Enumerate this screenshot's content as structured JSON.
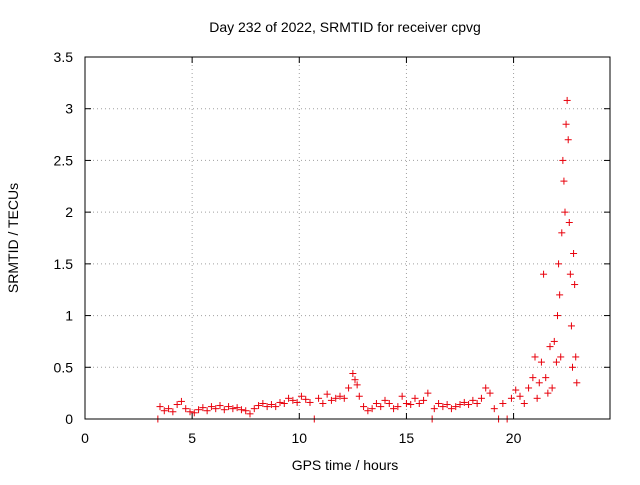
{
  "chart_data": {
    "type": "scatter",
    "title": "Day 232 of 2022, SRMTID for receiver cpvg",
    "xlabel": "GPS time / hours",
    "ylabel": "SRMTID / TECUs",
    "xlim": [
      0,
      24.5
    ],
    "ylim": [
      0,
      3.5
    ],
    "grid": true,
    "marker": "+",
    "series_color": "#e8000b",
    "x_ticks": [
      0,
      5,
      10,
      15,
      20
    ],
    "y_ticks": [
      0,
      0.5,
      1,
      1.5,
      2,
      2.5,
      3,
      3.5
    ],
    "x_tick_labels": [
      "0",
      "5",
      "10",
      "15",
      "20"
    ],
    "y_tick_labels": [
      "0",
      "0.5",
      "1",
      "1.5",
      "2",
      "2.5",
      "3",
      "3.5"
    ],
    "series": [
      {
        "name": "SRMTID",
        "points": [
          [
            3.4,
            0.0
          ],
          [
            3.5,
            0.12
          ],
          [
            3.7,
            0.08
          ],
          [
            3.9,
            0.1
          ],
          [
            4.1,
            0.07
          ],
          [
            4.3,
            0.14
          ],
          [
            4.5,
            0.17
          ],
          [
            4.7,
            0.1
          ],
          [
            4.9,
            0.07
          ],
          [
            5.1,
            0.06
          ],
          [
            5.3,
            0.09
          ],
          [
            5.5,
            0.11
          ],
          [
            5.7,
            0.08
          ],
          [
            5.9,
            0.12
          ],
          [
            6.1,
            0.1
          ],
          [
            6.3,
            0.13
          ],
          [
            6.5,
            0.09
          ],
          [
            6.7,
            0.12
          ],
          [
            6.9,
            0.1
          ],
          [
            7.1,
            0.11
          ],
          [
            7.3,
            0.09
          ],
          [
            7.5,
            0.08
          ],
          [
            7.7,
            0.05
          ],
          [
            7.9,
            0.1
          ],
          [
            8.1,
            0.13
          ],
          [
            8.3,
            0.15
          ],
          [
            8.5,
            0.12
          ],
          [
            8.7,
            0.14
          ],
          [
            8.9,
            0.12
          ],
          [
            9.1,
            0.16
          ],
          [
            9.3,
            0.15
          ],
          [
            9.5,
            0.2
          ],
          [
            9.7,
            0.18
          ],
          [
            9.9,
            0.16
          ],
          [
            10.1,
            0.22
          ],
          [
            10.3,
            0.19
          ],
          [
            10.5,
            0.16
          ],
          [
            10.7,
            0.0
          ],
          [
            10.9,
            0.2
          ],
          [
            11.1,
            0.15
          ],
          [
            11.3,
            0.24
          ],
          [
            11.5,
            0.18
          ],
          [
            11.7,
            0.2
          ],
          [
            11.9,
            0.22
          ],
          [
            12.1,
            0.2
          ],
          [
            12.3,
            0.3
          ],
          [
            12.5,
            0.44
          ],
          [
            12.6,
            0.38
          ],
          [
            12.7,
            0.33
          ],
          [
            12.8,
            0.22
          ],
          [
            13.0,
            0.12
          ],
          [
            13.2,
            0.08
          ],
          [
            13.4,
            0.1
          ],
          [
            13.6,
            0.15
          ],
          [
            13.8,
            0.12
          ],
          [
            14.0,
            0.18
          ],
          [
            14.2,
            0.15
          ],
          [
            14.4,
            0.1
          ],
          [
            14.6,
            0.12
          ],
          [
            14.8,
            0.22
          ],
          [
            15.0,
            0.15
          ],
          [
            15.2,
            0.14
          ],
          [
            15.4,
            0.2
          ],
          [
            15.6,
            0.15
          ],
          [
            15.8,
            0.18
          ],
          [
            16.0,
            0.25
          ],
          [
            16.2,
            0.0
          ],
          [
            16.3,
            0.1
          ],
          [
            16.5,
            0.15
          ],
          [
            16.7,
            0.12
          ],
          [
            16.9,
            0.14
          ],
          [
            17.1,
            0.1
          ],
          [
            17.3,
            0.12
          ],
          [
            17.5,
            0.14
          ],
          [
            17.7,
            0.16
          ],
          [
            17.9,
            0.14
          ],
          [
            18.1,
            0.18
          ],
          [
            18.3,
            0.15
          ],
          [
            18.5,
            0.2
          ],
          [
            18.7,
            0.3
          ],
          [
            18.9,
            0.25
          ],
          [
            19.1,
            0.1
          ],
          [
            19.3,
            0.0
          ],
          [
            19.5,
            0.15
          ],
          [
            19.7,
            0.0
          ],
          [
            19.9,
            0.2
          ],
          [
            20.1,
            0.28
          ],
          [
            20.3,
            0.22
          ],
          [
            20.5,
            0.15
          ],
          [
            20.7,
            0.3
          ],
          [
            20.9,
            0.4
          ],
          [
            21.0,
            0.6
          ],
          [
            21.1,
            0.2
          ],
          [
            21.2,
            0.35
          ],
          [
            21.3,
            0.55
          ],
          [
            21.4,
            1.4
          ],
          [
            21.5,
            0.4
          ],
          [
            21.6,
            0.25
          ],
          [
            21.7,
            0.7
          ],
          [
            21.8,
            0.3
          ],
          [
            21.9,
            0.75
          ],
          [
            22.0,
            0.55
          ],
          [
            22.05,
            1.0
          ],
          [
            22.1,
            1.5
          ],
          [
            22.15,
            1.2
          ],
          [
            22.2,
            0.6
          ],
          [
            22.25,
            1.8
          ],
          [
            22.3,
            2.5
          ],
          [
            22.35,
            2.3
          ],
          [
            22.4,
            2.0
          ],
          [
            22.45,
            2.85
          ],
          [
            22.5,
            3.08
          ],
          [
            22.55,
            2.7
          ],
          [
            22.6,
            1.9
          ],
          [
            22.65,
            1.4
          ],
          [
            22.7,
            0.9
          ],
          [
            22.75,
            0.5
          ],
          [
            22.8,
            1.6
          ],
          [
            22.85,
            1.3
          ],
          [
            22.9,
            0.6
          ],
          [
            22.95,
            0.35
          ]
        ]
      }
    ]
  }
}
